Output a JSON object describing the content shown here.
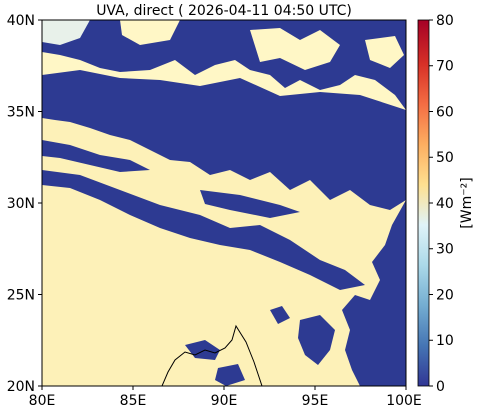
{
  "title": "UVA, direct ( 2026-04-11 04:50 UTC)",
  "y_axis": {
    "ticks": [
      "40N",
      "35N",
      "30N",
      "25N",
      "20N"
    ],
    "range": [
      20,
      40
    ]
  },
  "x_axis": {
    "ticks": [
      "80E",
      "85E",
      "90E",
      "95E",
      "100E"
    ],
    "range": [
      80,
      100
    ]
  },
  "colorbar": {
    "label": "[Wm⁻²]",
    "ticks": [
      "0",
      "10",
      "20",
      "30",
      "40",
      "50",
      "60",
      "70",
      "80"
    ],
    "range": [
      0,
      80
    ],
    "colors": [
      "#313695",
      "#4575b4",
      "#74add1",
      "#abd9e9",
      "#e0f3f8",
      "#fee090",
      "#fdae61",
      "#f46d43",
      "#d73027",
      "#a50026"
    ]
  },
  "map_colors": {
    "clear_sky": "#fdf1b8",
    "clear_sky_north": "#fff7c6",
    "cloud": "#2d3a92",
    "coast": "#000000"
  }
}
